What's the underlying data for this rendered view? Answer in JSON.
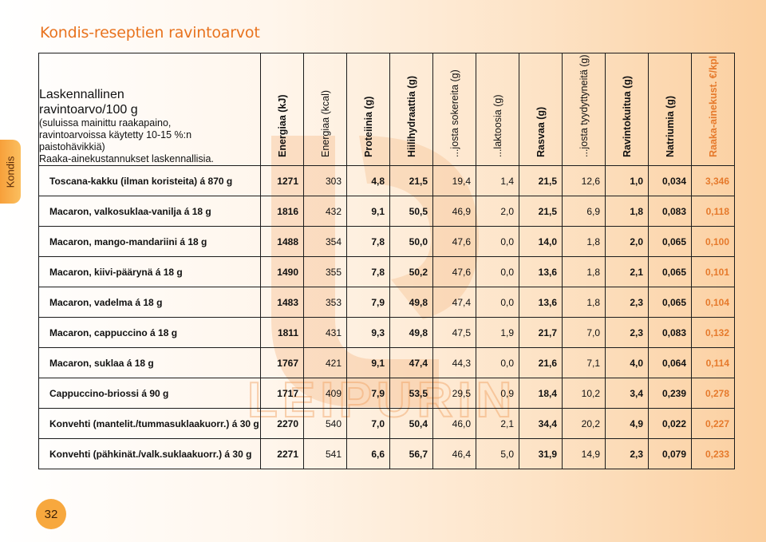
{
  "page": {
    "title": "Kondis-reseptien ravintoarvot",
    "side_tab": "Kondis",
    "page_number": "32",
    "watermark_text": "LEIPURIN"
  },
  "header": {
    "label_main_1": "Laskennallinen",
    "label_main_2": "ravintoarvo/100 g",
    "label_sub_1": "(suluissa mainittu raakapaino,",
    "label_sub_2": "ravintoarvoissa käytetty 10-15 %:n paistohävikkiä)",
    "label_sub_3": "Raaka-ainekustannukset laskennallisia.",
    "columns": [
      "Energiaa (kJ)",
      "Energiaa (kcal)",
      "Proteiinia (g)",
      "Hiilihydraattia (g)",
      "...josta sokereita (g)",
      "...laktoosia (g)",
      "Rasvaa (g)",
      "...josta tyydyttyneitä (g)",
      "Ravintokuitua (g)",
      "Natriumia (g)",
      "Raaka-ainekust. €/kpl"
    ]
  },
  "rows": [
    {
      "name": "Toscana-kakku (ilman koristeita) á 870 g",
      "values": [
        "1271",
        "303",
        "4,8",
        "21,5",
        "19,4",
        "1,4",
        "21,5",
        "12,6",
        "1,0",
        "0,034",
        "3,346"
      ]
    },
    {
      "name": "Macaron, valkosuklaa-vanilja á 18 g",
      "values": [
        "1816",
        "432",
        "9,1",
        "50,5",
        "46,9",
        "2,0",
        "21,5",
        "6,9",
        "1,8",
        "0,083",
        "0,118"
      ]
    },
    {
      "name": "Macaron, mango-mandariini á 18 g",
      "values": [
        "1488",
        "354",
        "7,8",
        "50,0",
        "47,6",
        "0,0",
        "14,0",
        "1,8",
        "2,0",
        "0,065",
        "0,100"
      ]
    },
    {
      "name": "Macaron, kiivi-päärynä á 18 g",
      "values": [
        "1490",
        "355",
        "7,8",
        "50,2",
        "47,6",
        "0,0",
        "13,6",
        "1,8",
        "2,1",
        "0,065",
        "0,101"
      ]
    },
    {
      "name": "Macaron, vadelma á 18 g",
      "values": [
        "1483",
        "353",
        "7,9",
        "49,8",
        "47,4",
        "0,0",
        "13,6",
        "1,8",
        "2,3",
        "0,065",
        "0,104"
      ]
    },
    {
      "name": "Macaron, cappuccino á 18 g",
      "values": [
        "1811",
        "431",
        "9,3",
        "49,8",
        "47,5",
        "1,9",
        "21,7",
        "7,0",
        "2,3",
        "0,083",
        "0,132"
      ]
    },
    {
      "name": "Macaron, suklaa á 18 g",
      "values": [
        "1767",
        "421",
        "9,1",
        "47,4",
        "44,3",
        "0,0",
        "21,6",
        "7,1",
        "4,0",
        "0,064",
        "0,114"
      ]
    },
    {
      "name": "Cappuccino-briossi á 90 g",
      "values": [
        "1717",
        "409",
        "7,9",
        "53,5",
        "29,5",
        "0,9",
        "18,4",
        "10,2",
        "3,4",
        "0,239",
        "0,278"
      ]
    },
    {
      "name": "Konvehti (mantelit./tummasuklaakuorr.) á 30 g",
      "values": [
        "2270",
        "540",
        "7,0",
        "50,4",
        "46,0",
        "2,1",
        "34,4",
        "20,2",
        "4,9",
        "0,022",
        "0,227"
      ]
    },
    {
      "name": "Konvehti (pähkinät./valk.suklaakuorr.) á 30 g",
      "values": [
        "2271",
        "541",
        "6,6",
        "56,7",
        "46,4",
        "5,0",
        "31,9",
        "14,9",
        "2,3",
        "0,079",
        "0,233"
      ]
    }
  ],
  "colors": {
    "accent": "#e8731f",
    "cost": "#e67a2c",
    "tab": "#f7a03a"
  }
}
